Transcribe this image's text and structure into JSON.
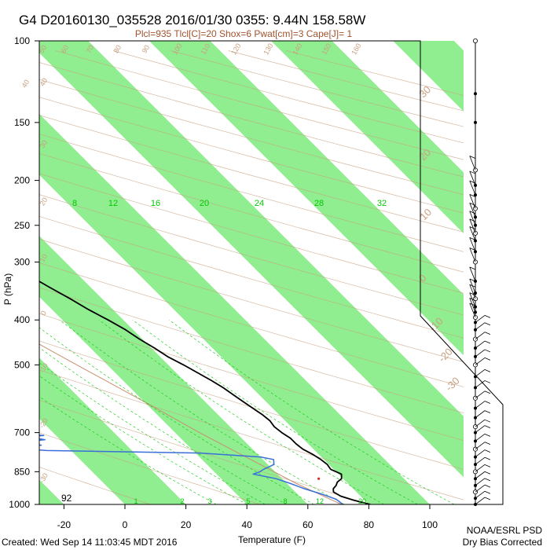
{
  "header": {
    "title": "G4 D20160130_035528 2016/01/30 0355:  9.44N 158.58W",
    "subtitle": "Plcl=935 Tlcl[C]=20 Shox=6 Pwat[cm]=3 Cape[J]= 1"
  },
  "footer": {
    "created": "Created: Wed Sep 14 11:03:45 MDT 2016",
    "org": "NOAA/ESRL PSD",
    "note": "Dry Bias Corrected"
  },
  "inset_value": "92",
  "colors": {
    "band": "#90ee90",
    "temperature": "#000000",
    "dewpoint": "#3a6ed8",
    "adiabat": "#c8a080",
    "mixing_ratio": "#00c800"
  },
  "chart_data": {
    "type": "line",
    "title": "G4 D20160130_035528 2016/01/30 0355:  9.44N 158.58W",
    "xlabel": "Temperature (F)",
    "ylabel": "P (hPa)",
    "xlim": [
      -30,
      100
    ],
    "ylim_log": [
      1000,
      100
    ],
    "x_ticks": [
      -20,
      0,
      20,
      40,
      60,
      80,
      100
    ],
    "y_ticks": [
      100,
      150,
      200,
      250,
      300,
      400,
      500,
      700,
      850,
      1000
    ],
    "skewed_isotherm_labels": [
      "-30",
      "-20",
      "-10",
      "0",
      "10",
      "20",
      "30"
    ],
    "mixing_ratio_upper_labels": [
      "8",
      "12",
      "16",
      "20",
      "24",
      "28",
      "32"
    ],
    "mixing_ratio_lower_labels": [
      "1",
      "2",
      "3",
      "5",
      "8",
      "12",
      "20"
    ],
    "theta_labels": [
      "40",
      "50",
      "60",
      "70",
      "80",
      "90",
      "100",
      "110",
      "120",
      "130",
      "140",
      "150",
      "160"
    ],
    "theta_left_labels": [
      "40",
      "30",
      "20",
      "10",
      "0",
      "-10",
      "-20",
      "-30"
    ],
    "series": [
      {
        "name": "Temperature",
        "points": [
          [
            1000,
            80.5
          ],
          [
            980,
            76.5
          ],
          [
            960,
            73.5
          ],
          [
            940,
            72.5
          ],
          [
            925,
            73.5
          ],
          [
            910,
            75.5
          ],
          [
            895,
            77
          ],
          [
            880,
            79.5
          ],
          [
            860,
            81
          ],
          [
            840,
            79
          ],
          [
            820,
            79.5
          ],
          [
            800,
            79
          ],
          [
            780,
            78
          ],
          [
            760,
            76.5
          ],
          [
            740,
            76
          ],
          [
            720,
            76
          ],
          [
            700,
            75
          ],
          [
            680,
            74.5
          ],
          [
            660,
            75
          ],
          [
            640,
            74.5
          ],
          [
            620,
            73.5
          ],
          [
            600,
            72.5
          ],
          [
            580,
            71.5
          ],
          [
            560,
            70.5
          ],
          [
            540,
            69
          ],
          [
            520,
            67
          ],
          [
            500,
            65
          ],
          [
            480,
            62.5
          ],
          [
            460,
            61
          ],
          [
            440,
            59
          ],
          [
            420,
            57.5
          ],
          [
            400,
            55
          ],
          [
            380,
            52
          ],
          [
            360,
            49.5
          ],
          [
            340,
            46.5
          ],
          [
            320,
            43.5
          ],
          [
            300,
            40.5
          ],
          [
            280,
            37
          ],
          [
            260,
            33
          ],
          [
            240,
            28.5
          ],
          [
            220,
            23.5
          ],
          [
            200,
            18
          ],
          [
            185,
            13.5
          ],
          [
            170,
            8.5
          ]
        ]
      },
      {
        "name": "Dewpoint",
        "points": [
          [
            1000,
            71.5
          ],
          [
            975,
            71
          ],
          [
            950,
            68
          ],
          [
            925,
            64
          ],
          [
            900,
            61
          ],
          [
            880,
            58
          ],
          [
            860,
            52
          ],
          [
            850,
            55
          ],
          [
            840,
            57
          ],
          [
            820,
            62
          ],
          [
            800,
            63.5
          ],
          [
            790,
            60
          ],
          [
            775,
            42
          ],
          [
            765,
            -8
          ],
          [
            755,
            -20
          ],
          [
            745,
            -8
          ],
          [
            735,
            -15
          ],
          [
            725,
            -5
          ],
          [
            715,
            -10
          ],
          [
            710,
            -4
          ],
          [
            705,
            -12
          ],
          [
            700,
            -20
          ],
          [
            690,
            -21
          ],
          [
            680,
            -20
          ],
          [
            360,
            -19
          ],
          [
            350,
            -3
          ],
          [
            345,
            -6
          ],
          [
            340,
            -12
          ],
          [
            330,
            -14
          ],
          [
            320,
            -13
          ],
          [
            315,
            -4
          ],
          [
            310,
            -11
          ],
          [
            300,
            -13
          ],
          [
            295,
            -6
          ],
          [
            285,
            -2
          ],
          [
            275,
            2
          ],
          [
            265,
            4
          ],
          [
            255,
            7
          ],
          [
            245,
            13
          ],
          [
            235,
            17
          ],
          [
            225,
            19
          ],
          [
            215,
            19
          ],
          [
            205,
            17
          ],
          [
            195,
            16
          ]
        ]
      }
    ]
  }
}
